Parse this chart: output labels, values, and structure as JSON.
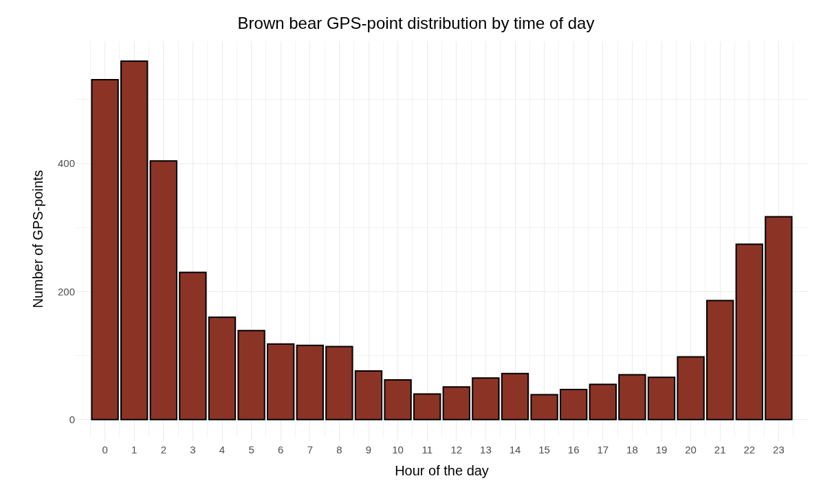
{
  "chart_data": {
    "type": "bar",
    "title": "Brown bear GPS-point distribution by time of day",
    "xlabel": "Hour of the day",
    "ylabel": "Number of GPS-points",
    "x": [
      0,
      1,
      2,
      3,
      4,
      5,
      6,
      7,
      8,
      9,
      10,
      11,
      12,
      13,
      14,
      15,
      16,
      17,
      18,
      19,
      20,
      21,
      22,
      23
    ],
    "values": [
      531,
      560,
      404,
      230,
      160,
      139,
      118,
      116,
      114,
      76,
      62,
      40,
      51,
      65,
      72,
      39,
      47,
      55,
      70,
      66,
      98,
      186,
      274,
      317
    ],
    "color": "#8b3426",
    "xlim": [
      -1,
      24
    ],
    "xticks": [
      0,
      1,
      2,
      3,
      4,
      5,
      6,
      7,
      8,
      9,
      10,
      11,
      12,
      13,
      14,
      15,
      16,
      17,
      18,
      19,
      20,
      21,
      22,
      23
    ],
    "ylim": [
      -27,
      591
    ],
    "yticks": [
      0,
      200,
      400
    ],
    "grid": true
  }
}
